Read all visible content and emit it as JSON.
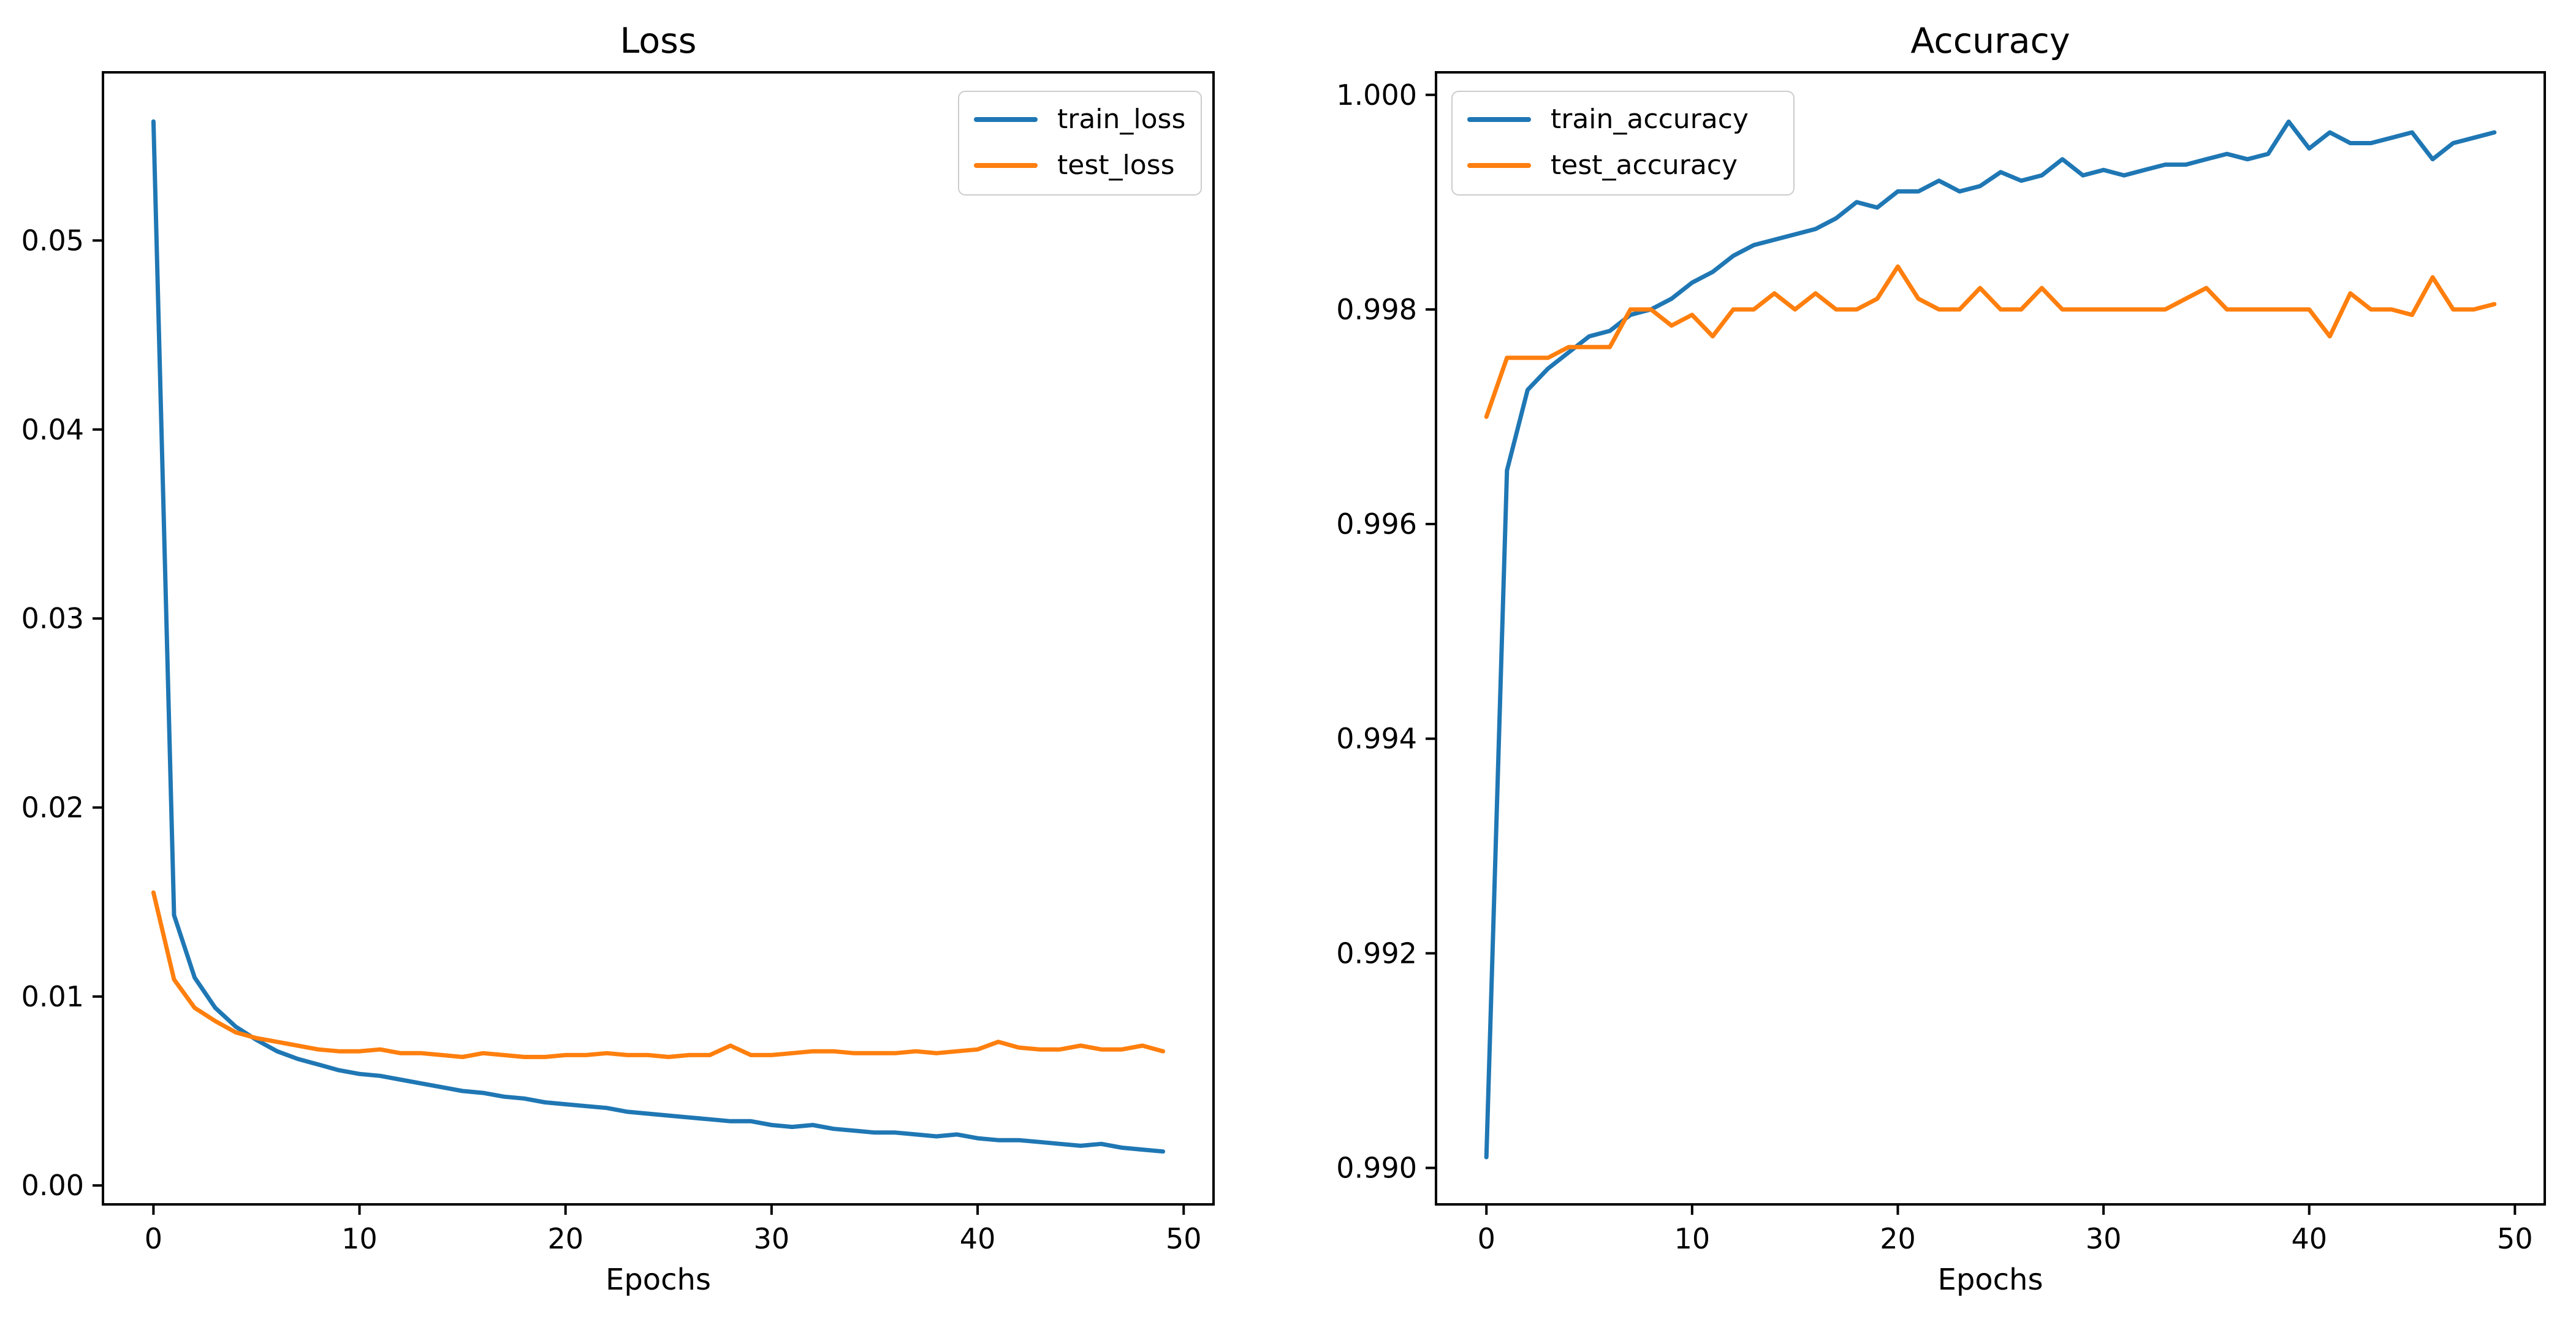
{
  "figure": {
    "background": "#ffffff",
    "text_color": "#000000",
    "epochs": [
      0,
      1,
      2,
      3,
      4,
      5,
      6,
      7,
      8,
      9,
      10,
      11,
      12,
      13,
      14,
      15,
      16,
      17,
      18,
      19,
      20,
      21,
      22,
      23,
      24,
      25,
      26,
      27,
      28,
      29,
      30,
      31,
      32,
      33,
      34,
      35,
      36,
      37,
      38,
      39,
      40,
      41,
      42,
      43,
      44,
      45,
      46,
      47,
      48,
      49
    ]
  },
  "chart_data": [
    {
      "type": "line",
      "title": "Loss",
      "xlabel": "Epochs",
      "ylabel": "",
      "grid": false,
      "legend_position": "upper right",
      "xlim": [
        -2.45,
        51.45
      ],
      "ylim": [
        -0.001,
        0.0589
      ],
      "xticks": [
        0,
        10,
        20,
        30,
        40,
        50
      ],
      "xtick_labels": [
        "0",
        "10",
        "20",
        "30",
        "40",
        "50"
      ],
      "yticks": [
        0.0,
        0.01,
        0.02,
        0.03,
        0.04,
        0.05
      ],
      "ytick_labels": [
        "0.00",
        "0.01",
        "0.02",
        "0.03",
        "0.04",
        "0.05"
      ],
      "series": [
        {
          "name": "train_loss",
          "color": "#1f77b4",
          "values": [
            0.0563,
            0.0143,
            0.011,
            0.0094,
            0.0084,
            0.0077,
            0.0071,
            0.0067,
            0.0064,
            0.0061,
            0.0059,
            0.0058,
            0.0056,
            0.0054,
            0.0052,
            0.005,
            0.0049,
            0.0047,
            0.0046,
            0.0044,
            0.0043,
            0.0042,
            0.0041,
            0.0039,
            0.0038,
            0.0037,
            0.0036,
            0.0035,
            0.0034,
            0.0034,
            0.0032,
            0.0031,
            0.0032,
            0.003,
            0.0029,
            0.0028,
            0.0028,
            0.0027,
            0.0026,
            0.0027,
            0.0025,
            0.0024,
            0.0024,
            0.0023,
            0.0022,
            0.0021,
            0.0022,
            0.002,
            0.0019,
            0.0018
          ]
        },
        {
          "name": "test_loss",
          "color": "#ff7f0e",
          "values": [
            0.0155,
            0.0109,
            0.0094,
            0.0087,
            0.0081,
            0.0078,
            0.0076,
            0.0074,
            0.0072,
            0.0071,
            0.0071,
            0.0072,
            0.007,
            0.007,
            0.0069,
            0.0068,
            0.007,
            0.0069,
            0.0068,
            0.0068,
            0.0069,
            0.0069,
            0.007,
            0.0069,
            0.0069,
            0.0068,
            0.0069,
            0.0069,
            0.0074,
            0.0069,
            0.0069,
            0.007,
            0.0071,
            0.0071,
            0.007,
            0.007,
            0.007,
            0.0071,
            0.007,
            0.0071,
            0.0072,
            0.0076,
            0.0073,
            0.0072,
            0.0072,
            0.0074,
            0.0072,
            0.0072,
            0.0074,
            0.0071
          ]
        }
      ]
    },
    {
      "type": "line",
      "title": "Accuracy",
      "xlabel": "Epochs",
      "ylabel": "",
      "grid": false,
      "legend_position": "upper left",
      "xlim": [
        -2.45,
        51.45
      ],
      "ylim": [
        0.98966,
        1.00021
      ],
      "xticks": [
        0,
        10,
        20,
        30,
        40,
        50
      ],
      "xtick_labels": [
        "0",
        "10",
        "20",
        "30",
        "40",
        "50"
      ],
      "yticks": [
        0.99,
        0.992,
        0.994,
        0.996,
        0.998,
        1.0
      ],
      "ytick_labels": [
        "0.990",
        "0.992",
        "0.994",
        "0.996",
        "0.998",
        "1.000"
      ],
      "series": [
        {
          "name": "train_accuracy",
          "color": "#1f77b4",
          "values": [
            0.9901,
            0.9965,
            0.99725,
            0.99745,
            0.9976,
            0.99775,
            0.9978,
            0.99795,
            0.998,
            0.9981,
            0.99825,
            0.99835,
            0.9985,
            0.9986,
            0.99865,
            0.9987,
            0.99875,
            0.99885,
            0.999,
            0.99895,
            0.9991,
            0.9991,
            0.9992,
            0.9991,
            0.99915,
            0.99928,
            0.9992,
            0.99925,
            0.9994,
            0.99925,
            0.9993,
            0.99925,
            0.9993,
            0.99935,
            0.99935,
            0.9994,
            0.99945,
            0.9994,
            0.99945,
            0.99975,
            0.9995,
            0.99965,
            0.99955,
            0.99955,
            0.9996,
            0.99965,
            0.9994,
            0.99955,
            0.9996,
            0.99965
          ]
        },
        {
          "name": "test_accuracy",
          "color": "#ff7f0e",
          "values": [
            0.997,
            0.99755,
            0.99755,
            0.99755,
            0.99765,
            0.99765,
            0.99765,
            0.998,
            0.998,
            0.99785,
            0.99795,
            0.99775,
            0.998,
            0.998,
            0.99815,
            0.998,
            0.99815,
            0.998,
            0.998,
            0.9981,
            0.9984,
            0.9981,
            0.998,
            0.998,
            0.9982,
            0.998,
            0.998,
            0.9982,
            0.998,
            0.998,
            0.998,
            0.998,
            0.998,
            0.998,
            0.9981,
            0.9982,
            0.998,
            0.998,
            0.998,
            0.998,
            0.998,
            0.99775,
            0.99815,
            0.998,
            0.998,
            0.99795,
            0.9983,
            0.998,
            0.998,
            0.99805
          ]
        }
      ]
    }
  ]
}
